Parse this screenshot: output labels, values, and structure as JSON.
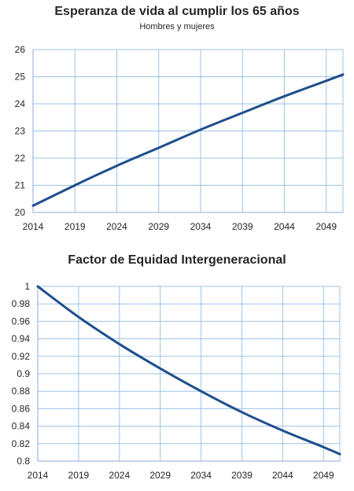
{
  "chart_data": [
    {
      "type": "line",
      "title": "Esperanza de vida al cumplir los 65 años",
      "subtitle": "Hombres y mujeres",
      "xlabel": "",
      "ylabel": "",
      "xlim": [
        2014,
        2051
      ],
      "ylim": [
        20,
        26
      ],
      "x_ticks": [
        2014,
        2019,
        2024,
        2029,
        2034,
        2039,
        2044,
        2049
      ],
      "y_ticks": [
        20,
        21,
        22,
        23,
        24,
        25,
        26
      ],
      "grid": true,
      "legend": "none",
      "line_color": "#1f4e8c",
      "grid_color": "#9dc3e6",
      "series": [
        {
          "x": [
            2014,
            2019,
            2024,
            2029,
            2034,
            2039,
            2044,
            2049,
            2051
          ],
          "values": [
            20.25,
            21.0,
            21.72,
            22.38,
            23.05,
            23.67,
            24.28,
            24.85,
            25.08
          ]
        }
      ]
    },
    {
      "type": "line",
      "title": "Factor de Equidad Intergeneracional",
      "xlabel": "",
      "ylabel": "",
      "xlim": [
        2014,
        2051
      ],
      "ylim": [
        0.8,
        1.0
      ],
      "x_ticks": [
        2014,
        2019,
        2024,
        2029,
        2034,
        2039,
        2044,
        2049
      ],
      "y_ticks": [
        0.8,
        0.82,
        0.84,
        0.86,
        0.88,
        0.9,
        0.92,
        0.94,
        0.96,
        0.98,
        1
      ],
      "y_tick_labels": [
        "0.8",
        "0.82",
        "0.84",
        "0.86",
        "0.88",
        "0.9",
        "0.92",
        "0.94",
        "0.96",
        "0.98",
        "1"
      ],
      "grid": true,
      "legend": "none",
      "line_color": "#1f4e8c",
      "grid_color": "#9dc3e6",
      "series": [
        {
          "x": [
            2014,
            2019,
            2024,
            2029,
            2034,
            2039,
            2044,
            2049,
            2051
          ],
          "values": [
            1.0,
            0.965,
            0.934,
            0.906,
            0.88,
            0.856,
            0.835,
            0.816,
            0.808
          ]
        }
      ]
    }
  ]
}
